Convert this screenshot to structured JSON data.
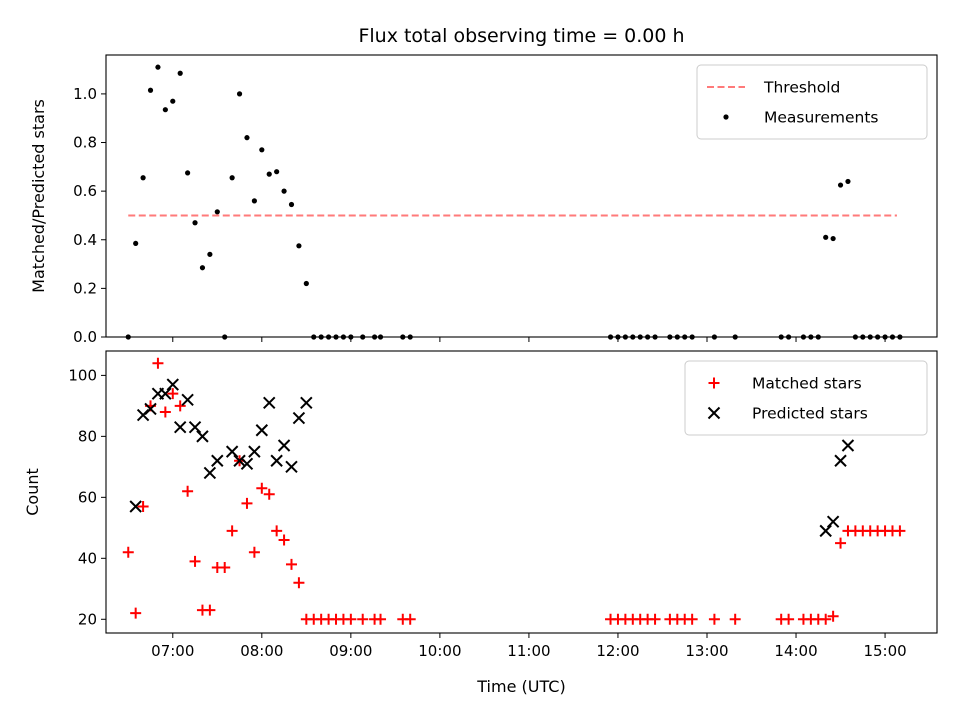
{
  "chart_data": [
    {
      "type": "scatter",
      "title": "Flux total observing time = 0.00 h",
      "ylabel": "Matched/Predicted stars",
      "xlabel": "",
      "xlim": [
        "06:15",
        "15:35"
      ],
      "ylim": [
        0,
        1.16
      ],
      "yticks": [
        "0.0",
        "0.2",
        "0.4",
        "0.6",
        "0.8",
        "1.0"
      ],
      "ytick_values": [
        0,
        0.2,
        0.4,
        0.6,
        0.8,
        1.0
      ],
      "grid": false,
      "legend_position": "top-right",
      "threshold": {
        "name": "Threshold",
        "value": 0.5,
        "x_start": "06:30",
        "x_end": "15:08",
        "color": "#ff7a7a",
        "style": "dashed"
      },
      "series": [
        {
          "name": "Measurements",
          "marker": "dot",
          "color": "#000000",
          "points": [
            [
              "06:30",
              0.0
            ],
            [
              "06:35",
              0.385
            ],
            [
              "06:40",
              0.655
            ],
            [
              "06:45",
              1.015
            ],
            [
              "06:50",
              1.11
            ],
            [
              "06:55",
              0.935
            ],
            [
              "07:00",
              0.97
            ],
            [
              "07:05",
              1.085
            ],
            [
              "07:10",
              0.675
            ],
            [
              "07:15",
              0.47
            ],
            [
              "07:20",
              0.285
            ],
            [
              "07:25",
              0.34
            ],
            [
              "07:30",
              0.515
            ],
            [
              "07:35",
              0.0
            ],
            [
              "07:40",
              0.655
            ],
            [
              "07:45",
              1.0
            ],
            [
              "07:50",
              0.82
            ],
            [
              "07:55",
              0.56
            ],
            [
              "08:00",
              0.77
            ],
            [
              "08:05",
              0.67
            ],
            [
              "08:10",
              0.68
            ],
            [
              "08:15",
              0.6
            ],
            [
              "08:20",
              0.545
            ],
            [
              "08:25",
              0.375
            ],
            [
              "08:30",
              0.22
            ],
            [
              "08:35",
              0.0
            ],
            [
              "08:40",
              0.0
            ],
            [
              "08:45",
              0.0
            ],
            [
              "08:50",
              0.0
            ],
            [
              "08:55",
              0.0
            ],
            [
              "09:00",
              0.0
            ],
            [
              "09:08",
              0.0
            ],
            [
              "09:16",
              0.0
            ],
            [
              "09:20",
              0.0
            ],
            [
              "09:35",
              0.0
            ],
            [
              "09:40",
              0.0
            ],
            [
              "11:55",
              0.0
            ],
            [
              "12:00",
              0.0
            ],
            [
              "12:05",
              0.0
            ],
            [
              "12:10",
              0.0
            ],
            [
              "12:15",
              0.0
            ],
            [
              "12:20",
              0.0
            ],
            [
              "12:25",
              0.0
            ],
            [
              "12:35",
              0.0
            ],
            [
              "12:40",
              0.0
            ],
            [
              "12:45",
              0.0
            ],
            [
              "12:50",
              0.0
            ],
            [
              "13:05",
              0.0
            ],
            [
              "13:19",
              0.0
            ],
            [
              "13:50",
              0.0
            ],
            [
              "13:55",
              0.0
            ],
            [
              "14:05",
              0.0
            ],
            [
              "14:10",
              0.0
            ],
            [
              "14:15",
              0.0
            ],
            [
              "14:20",
              0.41
            ],
            [
              "14:25",
              0.405
            ],
            [
              "14:30",
              0.625
            ],
            [
              "14:35",
              0.64
            ],
            [
              "14:40",
              0.0
            ],
            [
              "14:45",
              0.0
            ],
            [
              "14:50",
              0.0
            ],
            [
              "14:55",
              0.0
            ],
            [
              "15:00",
              0.0
            ],
            [
              "15:05",
              0.0
            ],
            [
              "15:10",
              0.0
            ]
          ]
        }
      ]
    },
    {
      "type": "scatter",
      "title": "",
      "ylabel": "Count",
      "xlabel": "Time (UTC)",
      "xlim": [
        "06:15",
        "15:35"
      ],
      "ylim": [
        15.5,
        108
      ],
      "yticks": [
        "20",
        "40",
        "60",
        "80",
        "100"
      ],
      "ytick_values": [
        20,
        40,
        60,
        80,
        100
      ],
      "xticks": [
        "07:00",
        "08:00",
        "09:00",
        "10:00",
        "11:00",
        "12:00",
        "13:00",
        "14:00",
        "15:00"
      ],
      "grid": false,
      "legend_position": "top-right",
      "series": [
        {
          "name": "Matched stars",
          "marker": "plus",
          "color": "#ff0000",
          "points": [
            [
              "06:30",
              42
            ],
            [
              "06:35",
              22
            ],
            [
              "06:40",
              57
            ],
            [
              "06:45",
              90
            ],
            [
              "06:50",
              104
            ],
            [
              "06:55",
              88
            ],
            [
              "07:00",
              94
            ],
            [
              "07:05",
              90
            ],
            [
              "07:10",
              62
            ],
            [
              "07:15",
              39
            ],
            [
              "07:20",
              23
            ],
            [
              "07:25",
              23
            ],
            [
              "07:30",
              37
            ],
            [
              "07:35",
              37
            ],
            [
              "07:40",
              49
            ],
            [
              "07:45",
              72
            ],
            [
              "07:50",
              58
            ],
            [
              "07:55",
              42
            ],
            [
              "08:00",
              63
            ],
            [
              "08:05",
              61
            ],
            [
              "08:10",
              49
            ],
            [
              "08:15",
              46
            ],
            [
              "08:20",
              38
            ],
            [
              "08:25",
              32
            ],
            [
              "08:30",
              20
            ],
            [
              "08:35",
              20
            ],
            [
              "08:40",
              20
            ],
            [
              "08:45",
              20
            ],
            [
              "08:50",
              20
            ],
            [
              "08:55",
              20
            ],
            [
              "09:00",
              20
            ],
            [
              "09:08",
              20
            ],
            [
              "09:16",
              20
            ],
            [
              "09:20",
              20
            ],
            [
              "09:35",
              20
            ],
            [
              "09:40",
              20
            ],
            [
              "11:55",
              20
            ],
            [
              "12:00",
              20
            ],
            [
              "12:05",
              20
            ],
            [
              "12:10",
              20
            ],
            [
              "12:15",
              20
            ],
            [
              "12:20",
              20
            ],
            [
              "12:25",
              20
            ],
            [
              "12:35",
              20
            ],
            [
              "12:40",
              20
            ],
            [
              "12:45",
              20
            ],
            [
              "12:50",
              20
            ],
            [
              "13:05",
              20
            ],
            [
              "13:19",
              20
            ],
            [
              "13:50",
              20
            ],
            [
              "13:55",
              20
            ],
            [
              "14:05",
              20
            ],
            [
              "14:10",
              20
            ],
            [
              "14:15",
              20
            ],
            [
              "14:20",
              20
            ],
            [
              "14:25",
              21
            ],
            [
              "14:30",
              45
            ],
            [
              "14:35",
              49
            ],
            [
              "14:40",
              49
            ],
            [
              "14:45",
              49
            ],
            [
              "14:50",
              49
            ],
            [
              "14:55",
              49
            ],
            [
              "15:00",
              49
            ],
            [
              "15:05",
              49
            ],
            [
              "15:10",
              49
            ]
          ]
        },
        {
          "name": "Predicted stars",
          "marker": "x",
          "color": "#000000",
          "points": [
            [
              "06:35",
              57
            ],
            [
              "06:40",
              87
            ],
            [
              "06:45",
              89
            ],
            [
              "06:50",
              94
            ],
            [
              "06:55",
              94
            ],
            [
              "07:00",
              97
            ],
            [
              "07:05",
              83
            ],
            [
              "07:10",
              92
            ],
            [
              "07:15",
              83
            ],
            [
              "07:20",
              80
            ],
            [
              "07:25",
              68
            ],
            [
              "07:30",
              72
            ],
            [
              "07:40",
              75
            ],
            [
              "07:45",
              72
            ],
            [
              "07:50",
              71
            ],
            [
              "07:55",
              75
            ],
            [
              "08:00",
              82
            ],
            [
              "08:05",
              91
            ],
            [
              "08:10",
              72
            ],
            [
              "08:15",
              77
            ],
            [
              "08:20",
              70
            ],
            [
              "08:25",
              86
            ],
            [
              "08:30",
              91
            ],
            [
              "14:20",
              49
            ],
            [
              "14:25",
              52
            ],
            [
              "14:30",
              72
            ],
            [
              "14:35",
              77
            ]
          ]
        }
      ]
    }
  ]
}
